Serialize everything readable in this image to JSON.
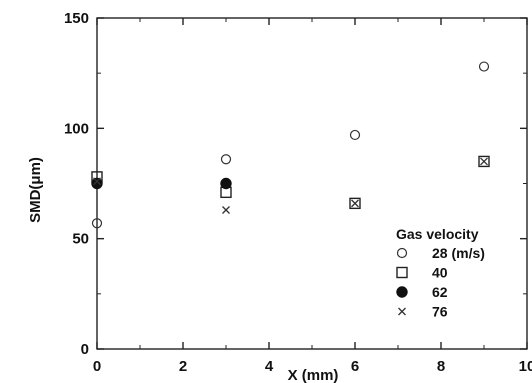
{
  "chart_data": {
    "type": "scatter",
    "title": "",
    "xlabel": "X (mm)",
    "ylabel": "SMD(μm)",
    "xlim": [
      0,
      10
    ],
    "ylim": [
      0,
      150
    ],
    "xticks": [
      0,
      2,
      4,
      6,
      8,
      10
    ],
    "yticks": [
      0,
      50,
      100,
      150
    ],
    "grid": false,
    "legend": {
      "title": "Gas velocity",
      "placement": "lower-right"
    },
    "series": [
      {
        "name": "28 (m/s)",
        "marker": "open-circle",
        "x": [
          0,
          3,
          6,
          9
        ],
        "y": [
          57,
          86,
          97,
          128
        ]
      },
      {
        "name": "40",
        "marker": "open-square",
        "x": [
          0,
          3,
          6,
          9
        ],
        "y": [
          78,
          71,
          66,
          85
        ]
      },
      {
        "name": "62",
        "marker": "filled-circle",
        "x": [
          0,
          3
        ],
        "y": [
          75,
          75
        ]
      },
      {
        "name": "76",
        "marker": "cross",
        "x": [
          0,
          3,
          6,
          9
        ],
        "y": [
          76,
          63,
          66,
          85
        ]
      }
    ]
  }
}
